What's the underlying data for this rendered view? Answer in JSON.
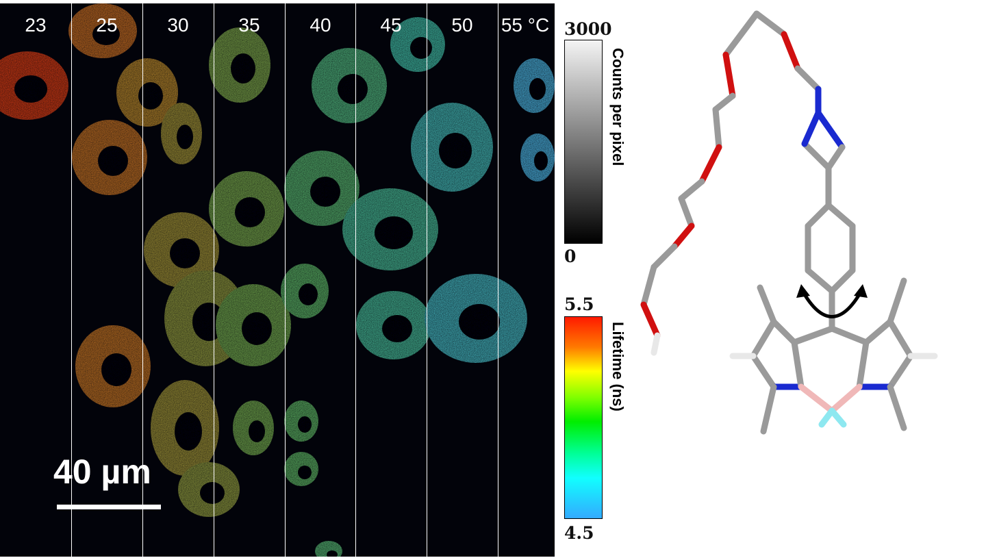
{
  "panel": {
    "temperatures": [
      "23",
      "25",
      "30",
      "35",
      "40",
      "45",
      "50",
      "55 °C"
    ],
    "scale_bar_label": "40 µm"
  },
  "counts_colorbar": {
    "title": "Counts per pixel",
    "max": "3000",
    "min": "0"
  },
  "lifetime_colorbar": {
    "title": "Lifetime (ns)",
    "max": "5.5",
    "min": "4.5",
    "colors": [
      "#ff1a00",
      "#ffff00",
      "#00ee00",
      "#11ffff",
      "#33aaff"
    ]
  }
}
